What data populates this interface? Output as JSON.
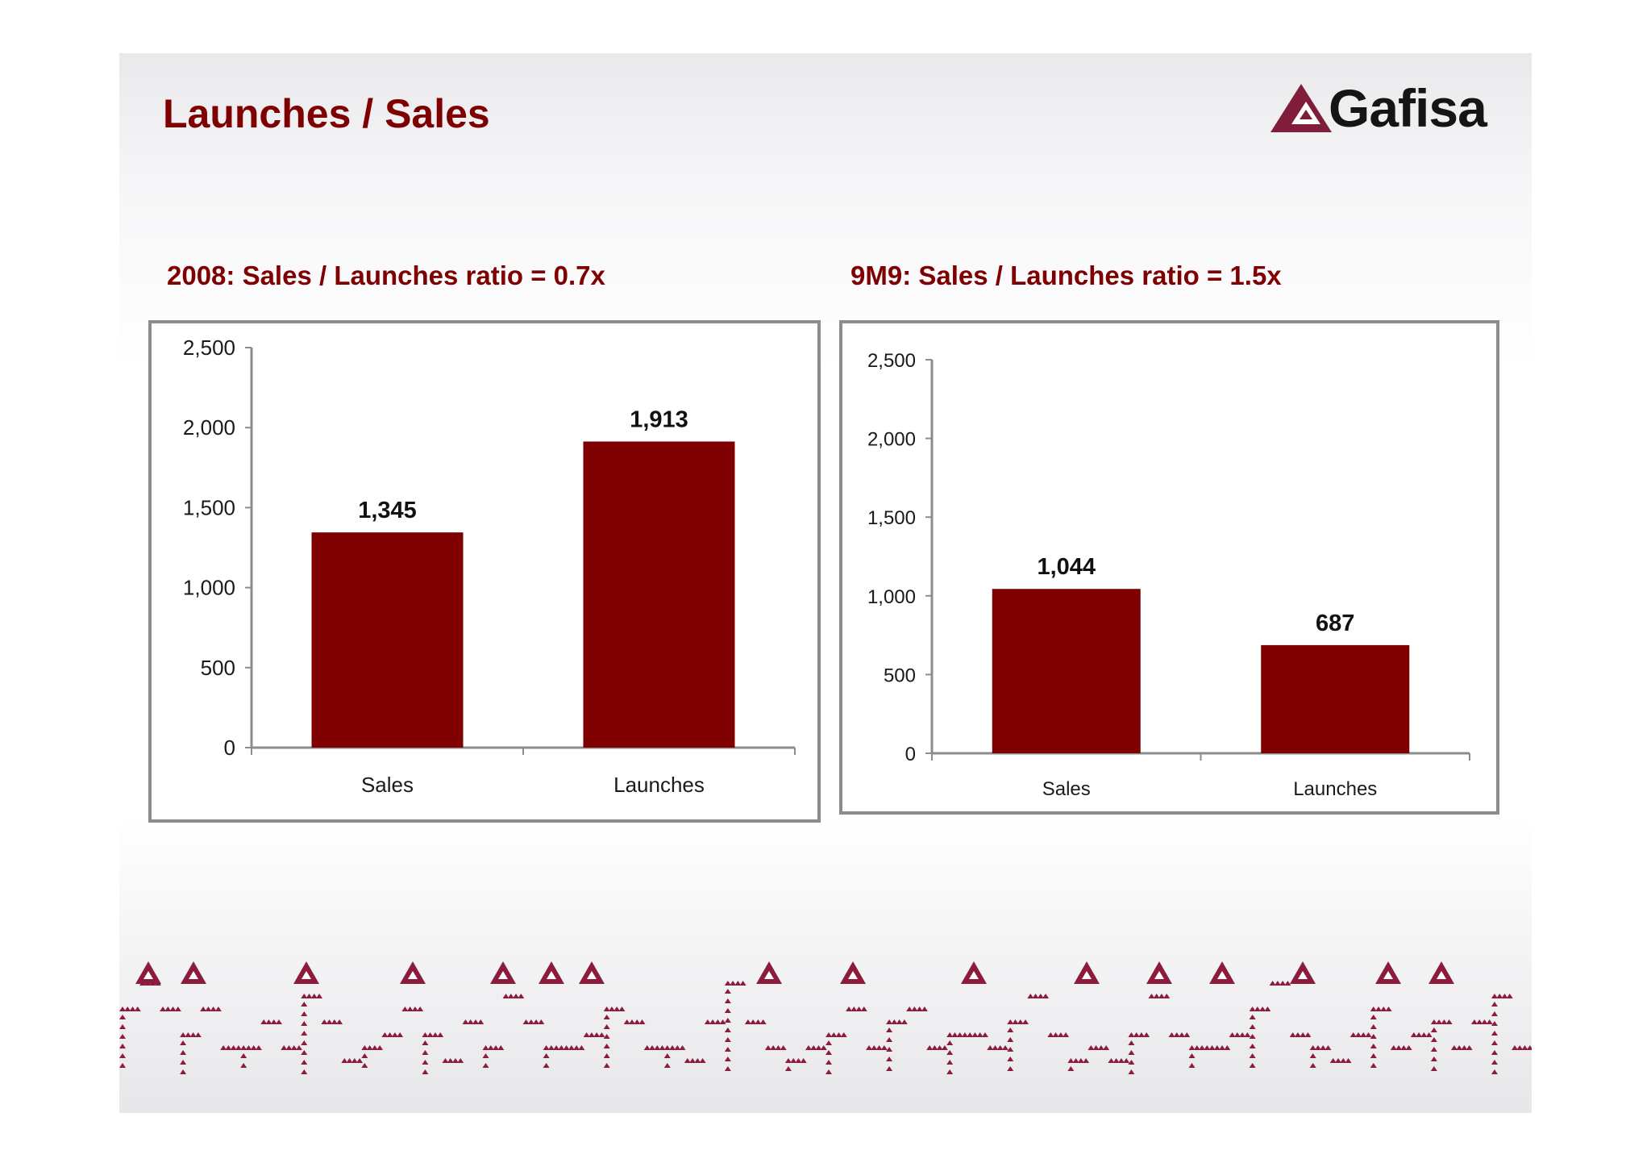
{
  "header": {
    "title": "Launches / Sales",
    "logo_text": "Gafisa",
    "brand_color": "#7f0000"
  },
  "chart_data": [
    {
      "type": "bar",
      "title": "2008: Sales / Launches ratio =  0.7x",
      "categories": [
        "Sales",
        "Launches"
      ],
      "values": [
        1345,
        1913
      ],
      "value_labels": [
        "1,345",
        "1,913"
      ],
      "ylim": [
        0,
        2500
      ],
      "yticks": [
        0,
        500,
        1000,
        1500,
        2000,
        2500
      ],
      "ytick_labels": [
        "0",
        "500",
        "1,000",
        "1,500",
        "2,000",
        "2,500"
      ],
      "grid": false,
      "bar_color": "#7f0000"
    },
    {
      "type": "bar",
      "title": "9M9: Sales / Launches ratio =  1.5x",
      "categories": [
        "Sales",
        "Launches"
      ],
      "values": [
        1044,
        687
      ],
      "value_labels": [
        "1,044",
        "687"
      ],
      "ylim": [
        0,
        2500
      ],
      "yticks": [
        0,
        500,
        1000,
        1500,
        2000,
        2500
      ],
      "ytick_labels": [
        "0",
        "500",
        "1,000",
        "1,500",
        "2,000",
        "2,500"
      ],
      "grid": false,
      "bar_color": "#7f0000"
    }
  ]
}
